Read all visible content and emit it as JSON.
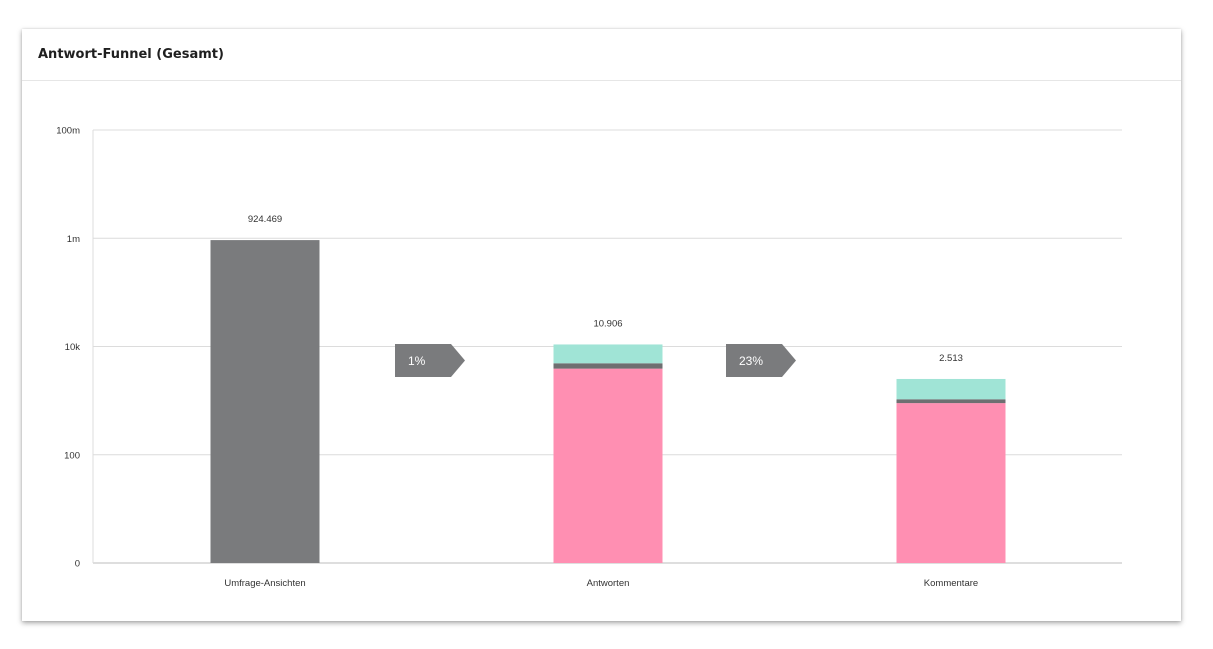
{
  "card": {
    "title": "Antwort-Funnel (Gesamt)"
  },
  "colors": {
    "views": "#7a7b7d",
    "segment_pink": "#ff8fb2",
    "segment_gray": "#6e6f71",
    "segment_mint": "#a0e4d6",
    "arrow": "#7a7b7d",
    "grid": "#dcdcdc"
  },
  "chart_data": {
    "type": "bar",
    "scale": "log",
    "ylim": [
      1,
      100000000
    ],
    "y_ticks": [
      {
        "value": 1,
        "label": "0"
      },
      {
        "value": 100,
        "label": "100"
      },
      {
        "value": 10000,
        "label": "10k"
      },
      {
        "value": 1000000,
        "label": "1m"
      },
      {
        "value": 100000000,
        "label": "100m"
      }
    ],
    "categories": [
      "Umfrage-Ansichten",
      "Antworten",
      "Kommentare"
    ],
    "totals": [
      "924.469",
      "10.906",
      "2.513"
    ],
    "stacks": [
      {
        "category": "Umfrage-Ansichten",
        "segments": [
          {
            "value": 924469,
            "color": "#7a7b7d"
          }
        ]
      },
      {
        "category": "Antworten",
        "segments": [
          {
            "value": 3900,
            "color": "#ff8fb2"
          },
          {
            "value": 1000,
            "color": "#6e6f71"
          },
          {
            "value": 6006,
            "color": "#a0e4d6"
          }
        ]
      },
      {
        "category": "Kommentare",
        "segments": [
          {
            "value": 900,
            "color": "#ff8fb2"
          },
          {
            "value": 160,
            "color": "#6e6f71"
          },
          {
            "value": 1453,
            "color": "#a0e4d6"
          }
        ]
      }
    ],
    "conversions": [
      {
        "label": "1%",
        "between": [
          "Umfrage-Ansichten",
          "Antworten"
        ]
      },
      {
        "label": "23%",
        "between": [
          "Antworten",
          "Kommentare"
        ]
      }
    ],
    "grid": true
  }
}
